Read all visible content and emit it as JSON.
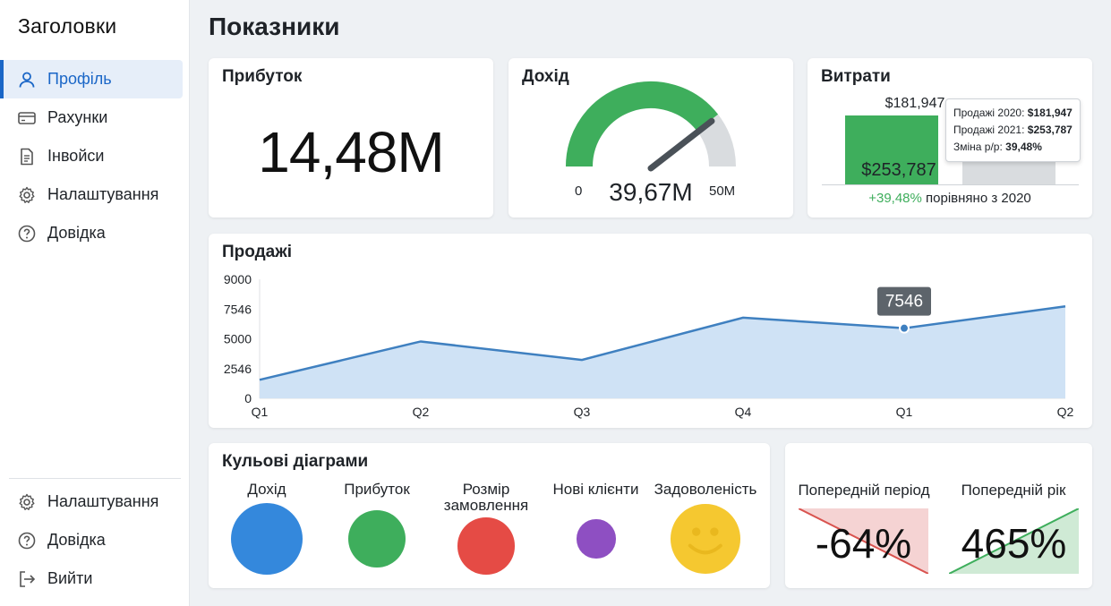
{
  "sidebar": {
    "title": "Заголовки",
    "items": [
      {
        "label": "Профіль",
        "icon": "user-icon",
        "active": true
      },
      {
        "label": "Рахунки",
        "icon": "credit-card-icon"
      },
      {
        "label": "Інвойси",
        "icon": "document-icon"
      },
      {
        "label": "Налаштування",
        "icon": "gear-icon"
      },
      {
        "label": "Довідка",
        "icon": "help-icon"
      }
    ],
    "bottom_items": [
      {
        "label": "Налаштування",
        "icon": "gear-icon"
      },
      {
        "label": "Довідка",
        "icon": "help-icon"
      },
      {
        "label": "Вийти",
        "icon": "logout-icon"
      }
    ]
  },
  "page": {
    "title": "Показники"
  },
  "profit": {
    "title": "Прибуток",
    "value": "14,48M"
  },
  "income": {
    "title": "Дохід",
    "min": "0",
    "max": "50M",
    "value": "39,67M",
    "fraction": 0.79
  },
  "expenses": {
    "title": "Витрати",
    "bar_top_label": "$181,947",
    "bar_value_label": "$253,787",
    "change": "+39,48%",
    "comparison": "порівняно з 2020",
    "tooltip": {
      "line1_label": "Продажі 2020:",
      "line1_value": "$181,947",
      "line2_label": "Продажі 2021:",
      "line2_value": "$253,787",
      "line3_label": "Зміна р/р:",
      "line3_value": "39,48%"
    }
  },
  "sales": {
    "title": "Продажі",
    "tooltip_value": "7546"
  },
  "chart_data": {
    "type": "area",
    "title": "Продажі",
    "categories": [
      "Q1",
      "Q2",
      "Q3",
      "Q4",
      "Q1",
      "Q2"
    ],
    "values": [
      1400,
      4300,
      2900,
      6100,
      5300,
      6950
    ],
    "yticks": [
      "9000",
      "7546",
      "5000",
      "2546",
      "0"
    ],
    "ylim": [
      0,
      9000
    ],
    "highlight_index": 4,
    "grid": false,
    "color": "#3f80c0",
    "fill": "#cfe2f5"
  },
  "bubbles": {
    "title": "Кульові діаграми",
    "items": [
      {
        "label": "Дохід",
        "color": "#3488dc",
        "size": 1.0
      },
      {
        "label": "Прибуток",
        "color": "#3eae5c",
        "size": 0.81
      },
      {
        "label": "Розмір замовлення",
        "color": "#e54b45",
        "size": 0.79
      },
      {
        "label": "Нові клієнти",
        "color": "#8e4fc2",
        "size": 0.54
      },
      {
        "label": "Задоволеність",
        "color": "#f5c830",
        "size": 0.97
      }
    ]
  },
  "compare": {
    "prev_period_label": "Попередній період",
    "prev_period_value": "-64%",
    "prev_year_label": "Попередній рік",
    "prev_year_value": "465%"
  }
}
